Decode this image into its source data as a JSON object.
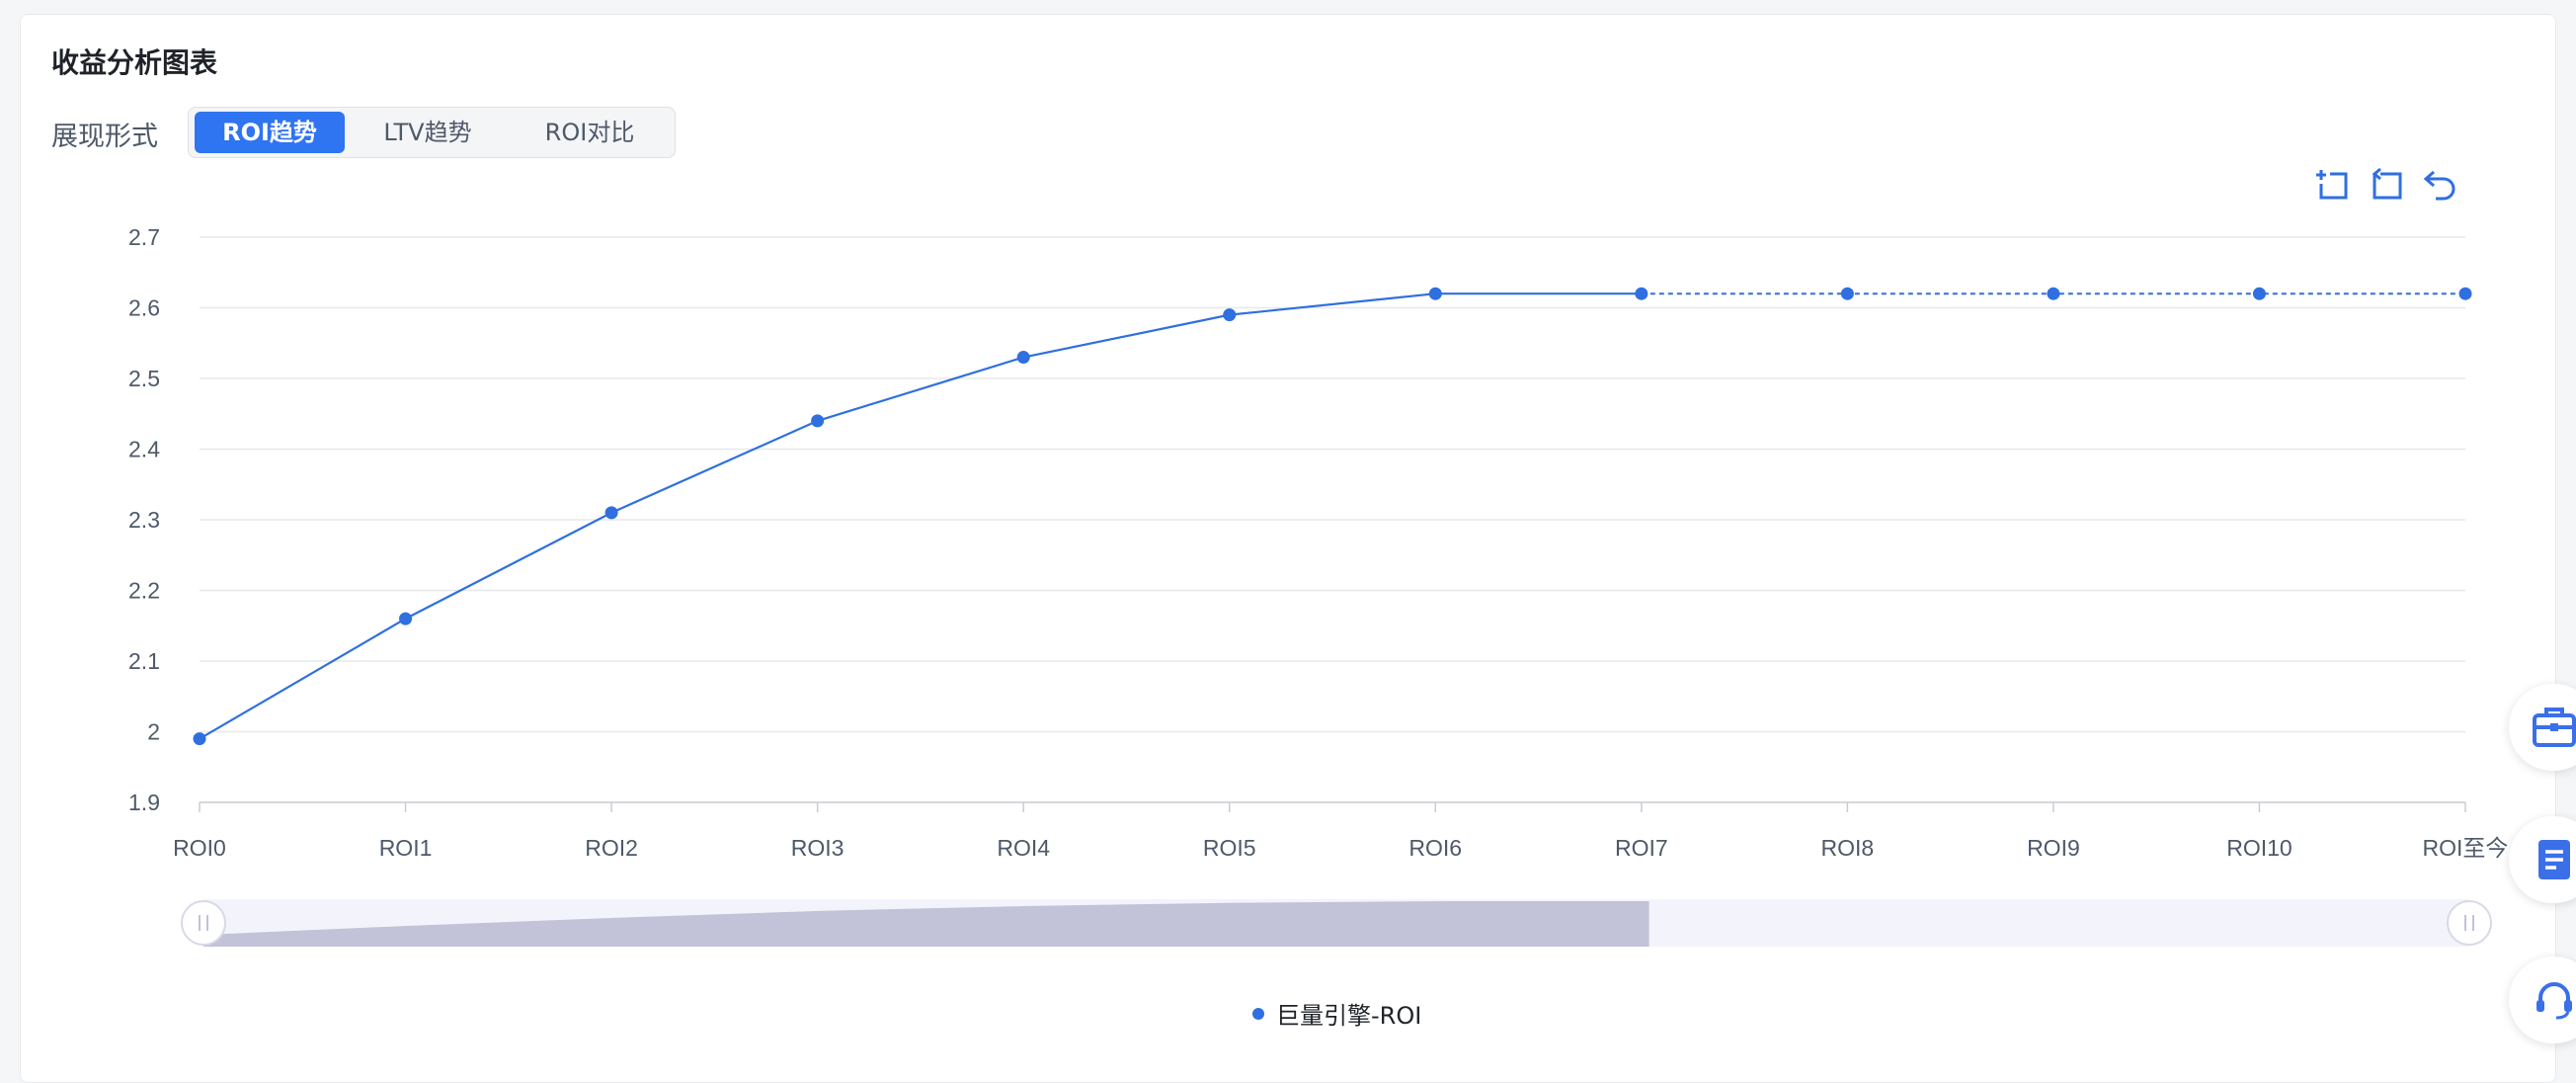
{
  "card": {
    "title": "收益分析图表",
    "mode_label": "展现形式"
  },
  "tabs": [
    {
      "label": "ROI趋势",
      "active": true
    },
    {
      "label": "LTV趋势",
      "active": false
    },
    {
      "label": "ROI对比",
      "active": false
    }
  ],
  "toolbox": [
    "zoom-area-icon",
    "zoom-reset-icon",
    "restore-icon"
  ],
  "side_buttons": [
    "toolbox-icon",
    "document-icon",
    "headset-icon"
  ],
  "colors": {
    "accent": "#2f74f0",
    "series": "#2f6fe0",
    "grid": "#e6e8ec",
    "slider_fill": "#c2c2d8",
    "slider_bg": "#f3f4fb"
  },
  "chart_data": {
    "type": "line",
    "categories": [
      "ROI0",
      "ROI1",
      "ROI2",
      "ROI3",
      "ROI4",
      "ROI5",
      "ROI6",
      "ROI7",
      "ROI8",
      "ROI9",
      "ROI10",
      "ROI至今"
    ],
    "series": [
      {
        "name": "巨量引擎-ROI",
        "values": [
          1.99,
          2.16,
          2.31,
          2.44,
          2.53,
          2.59,
          2.62,
          2.62,
          2.62,
          2.62,
          2.62,
          2.62
        ],
        "solid_until_index": 7
      }
    ],
    "ylim": [
      1.9,
      2.7
    ],
    "yticks": [
      "1.9",
      "2",
      "2.1",
      "2.2",
      "2.3",
      "2.4",
      "2.5",
      "2.6",
      "2.7"
    ],
    "grid": true,
    "legend": "bottom",
    "data_zoom": {
      "start": 0,
      "end": 1
    }
  }
}
